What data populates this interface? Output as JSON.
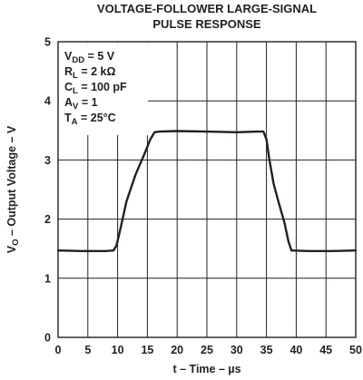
{
  "chart_data": {
    "type": "line",
    "title_line1": "VOLTAGE-FOLLOWER LARGE-SIGNAL",
    "title_line2": "PULSE RESPONSE",
    "xlabel": "t – Time – µs",
    "ylabel": {
      "prefix": "V",
      "subscript": "O",
      "suffix": " – Output Voltage – V"
    },
    "xlim": [
      0,
      50
    ],
    "ylim": [
      0,
      5
    ],
    "x_ticks": [
      0,
      5,
      10,
      15,
      20,
      25,
      30,
      35,
      40,
      45,
      50
    ],
    "y_ticks": [
      0,
      1,
      2,
      3,
      4,
      5
    ],
    "grid": true,
    "conditions": [
      {
        "main": "V",
        "sub": "DD",
        "rest": " = 5 V"
      },
      {
        "main": "R",
        "sub": "L",
        "rest": " = 2 kΩ"
      },
      {
        "main": "C",
        "sub": "L",
        "rest": " = 100 pF"
      },
      {
        "main": "A",
        "sub": "V",
        "rest": " = 1"
      },
      {
        "main": "T",
        "sub": "A",
        "rest": " = 25°C"
      }
    ],
    "series": [
      {
        "color": "#231f20",
        "x": [
          0,
          4,
          8,
          9.3,
          9.8,
          10.5,
          11.5,
          13,
          14.5,
          15.5,
          16.2,
          17,
          20,
          25,
          30,
          33.5,
          34.5,
          35,
          35.5,
          36.2,
          37,
          38,
          38.7,
          39.2,
          42,
          46,
          50
        ],
        "y": [
          1.47,
          1.46,
          1.46,
          1.47,
          1.55,
          1.85,
          2.3,
          2.75,
          3.1,
          3.35,
          3.47,
          3.48,
          3.49,
          3.48,
          3.47,
          3.48,
          3.48,
          3.35,
          3.0,
          2.6,
          2.3,
          1.95,
          1.62,
          1.47,
          1.46,
          1.46,
          1.47
        ]
      }
    ]
  }
}
